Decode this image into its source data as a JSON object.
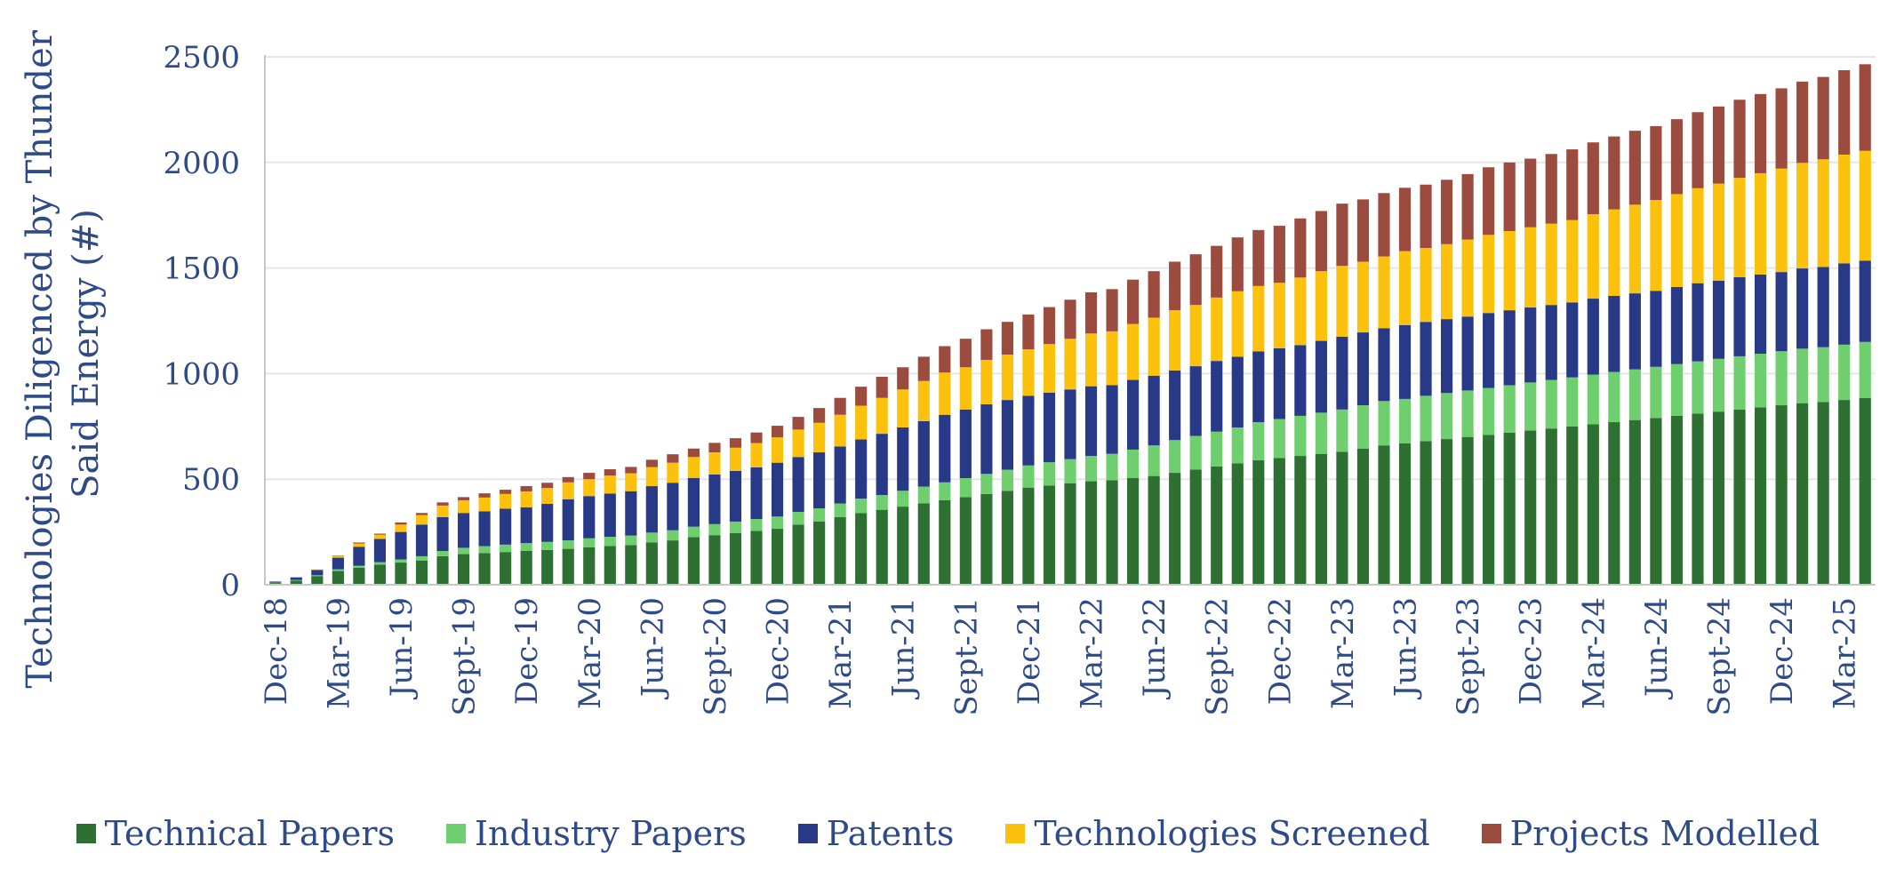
{
  "chart_data": {
    "type": "bar",
    "stacked": true,
    "ylabel": "Technologies Diligenced by Thunder Said Energy (#)",
    "ylabel_lines": [
      "Technologies Diligenced by Thunder",
      "Said Energy (#)"
    ],
    "ylim": [
      0,
      2500
    ],
    "yticks": [
      0,
      500,
      1000,
      1500,
      2000,
      2500
    ],
    "grid": true,
    "legend_position": "bottom",
    "x_tick_labels": [
      "Dec-18",
      "Mar-19",
      "Jun-19",
      "Sept-19",
      "Dec-19",
      "Mar-20",
      "Jun-20",
      "Sept-20",
      "Dec-20",
      "Mar-21",
      "Jun-21",
      "Sept-21",
      "Dec-21",
      "Mar-22",
      "Jun-22",
      "Sept-22",
      "Dec-22",
      "Mar-23",
      "Jun-23",
      "Sept-23",
      "Dec-23",
      "Mar-24",
      "Jun-24",
      "Sept-24",
      "Dec-24",
      "Mar-25"
    ],
    "categories": [
      "Dec-18",
      "Jan-19",
      "Feb-19",
      "Mar-19",
      "Apr-19",
      "May-19",
      "Jun-19",
      "Jul-19",
      "Aug-19",
      "Sept-19",
      "Oct-19",
      "Nov-19",
      "Dec-19",
      "Jan-20",
      "Feb-20",
      "Mar-20",
      "Apr-20",
      "May-20",
      "Jun-20",
      "Jul-20",
      "Aug-20",
      "Sept-20",
      "Oct-20",
      "Nov-20",
      "Dec-20",
      "Jan-21",
      "Feb-21",
      "Mar-21",
      "Apr-21",
      "May-21",
      "Jun-21",
      "Jul-21",
      "Aug-21",
      "Sept-21",
      "Oct-21",
      "Nov-21",
      "Dec-21",
      "Jan-22",
      "Feb-22",
      "Mar-22",
      "Apr-22",
      "May-22",
      "Jun-22",
      "Jul-22",
      "Aug-22",
      "Sept-22",
      "Oct-22",
      "Nov-22",
      "Dec-22",
      "Jan-23",
      "Feb-23",
      "Mar-23",
      "Apr-23",
      "May-23",
      "Jun-23",
      "Jul-23",
      "Aug-23",
      "Sept-23",
      "Oct-23",
      "Nov-23",
      "Dec-23",
      "Jan-24",
      "Feb-24",
      "Mar-24",
      "Apr-24",
      "May-24",
      "Jun-24",
      "Jul-24",
      "Aug-24",
      "Sept-24",
      "Oct-24",
      "Nov-24",
      "Dec-24",
      "Jan-25",
      "Feb-25",
      "Mar-25",
      "Apr-25"
    ],
    "series": [
      {
        "name": "Technical Papers",
        "color": "#2e7031",
        "values": [
          8,
          20,
          40,
          65,
          80,
          95,
          105,
          115,
          135,
          145,
          150,
          155,
          160,
          165,
          170,
          178,
          183,
          188,
          200,
          210,
          225,
          235,
          245,
          255,
          265,
          285,
          300,
          320,
          340,
          355,
          370,
          385,
          400,
          415,
          430,
          445,
          460,
          470,
          480,
          490,
          495,
          505,
          515,
          530,
          545,
          560,
          575,
          590,
          600,
          610,
          620,
          630,
          645,
          660,
          670,
          680,
          690,
          700,
          710,
          720,
          730,
          740,
          750,
          760,
          770,
          780,
          790,
          800,
          810,
          820,
          830,
          840,
          850,
          860,
          865,
          875,
          885
        ]
      },
      {
        "name": "Industry Papers",
        "color": "#6fcf6f",
        "values": [
          2,
          3,
          5,
          8,
          10,
          12,
          15,
          20,
          25,
          30,
          33,
          35,
          37,
          38,
          40,
          42,
          44,
          45,
          47,
          48,
          50,
          52,
          54,
          56,
          58,
          60,
          62,
          65,
          68,
          70,
          75,
          80,
          85,
          90,
          95,
          100,
          105,
          110,
          115,
          120,
          125,
          135,
          145,
          155,
          160,
          165,
          170,
          180,
          185,
          190,
          195,
          200,
          205,
          210,
          210,
          215,
          218,
          220,
          222,
          225,
          228,
          230,
          232,
          235,
          238,
          240,
          242,
          245,
          248,
          250,
          252,
          254,
          256,
          258,
          260,
          262,
          265
        ]
      },
      {
        "name": "Patents",
        "color": "#283a87",
        "values": [
          5,
          12,
          25,
          55,
          90,
          110,
          130,
          150,
          160,
          165,
          165,
          170,
          170,
          180,
          195,
          200,
          205,
          210,
          220,
          225,
          230,
          235,
          240,
          245,
          255,
          260,
          265,
          270,
          280,
          290,
          300,
          310,
          320,
          325,
          330,
          330,
          330,
          330,
          330,
          330,
          325,
          330,
          330,
          330,
          330,
          335,
          335,
          335,
          335,
          335,
          340,
          345,
          345,
          345,
          350,
          350,
          350,
          350,
          355,
          355,
          355,
          355,
          355,
          360,
          360,
          360,
          360,
          365,
          370,
          370,
          375,
          375,
          375,
          380,
          380,
          385,
          385
        ]
      },
      {
        "name": "Technologies Screened",
        "color": "#fbc10c",
        "values": [
          0,
          0,
          3,
          8,
          15,
          20,
          35,
          45,
          55,
          60,
          65,
          70,
          75,
          75,
          80,
          80,
          85,
          85,
          90,
          95,
          100,
          105,
          110,
          115,
          120,
          130,
          140,
          150,
          160,
          170,
          180,
          190,
          200,
          200,
          210,
          215,
          220,
          230,
          240,
          250,
          255,
          265,
          275,
          285,
          290,
          300,
          310,
          310,
          310,
          320,
          330,
          335,
          335,
          340,
          350,
          350,
          355,
          365,
          370,
          375,
          380,
          385,
          390,
          400,
          410,
          420,
          430,
          440,
          450,
          460,
          470,
          480,
          490,
          500,
          510,
          515,
          520
        ]
      },
      {
        "name": "Projects Modelled",
        "color": "#9c4c3e",
        "values": [
          0,
          0,
          0,
          2,
          5,
          5,
          10,
          10,
          15,
          15,
          20,
          20,
          25,
          25,
          25,
          30,
          30,
          30,
          35,
          40,
          40,
          45,
          45,
          50,
          55,
          60,
          70,
          80,
          90,
          100,
          105,
          115,
          125,
          135,
          145,
          155,
          165,
          175,
          185,
          195,
          200,
          210,
          220,
          230,
          240,
          245,
          255,
          265,
          270,
          280,
          285,
          295,
          295,
          300,
          300,
          300,
          305,
          310,
          320,
          325,
          325,
          330,
          335,
          340,
          345,
          350,
          350,
          355,
          360,
          365,
          370,
          375,
          380,
          385,
          390,
          400,
          410
        ]
      }
    ]
  }
}
